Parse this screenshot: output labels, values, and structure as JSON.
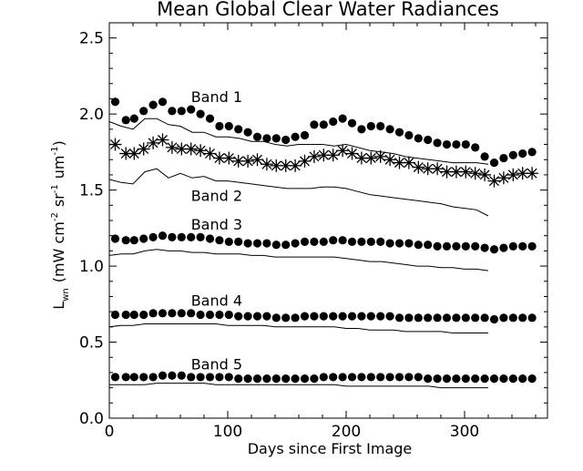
{
  "chart_data": {
    "type": "scatter",
    "title": "Mean Global Clear Water Radiances",
    "xlabel": "Days since First Image",
    "ylabel": {
      "base": "L",
      "base_sub": "wn",
      "open": "(mW cm",
      "exp1": "-2",
      "mid1": "sr",
      "exp2": "-1",
      "mid2": "um",
      "exp3": "-1",
      "close": ")"
    },
    "xlim": [
      0,
      370
    ],
    "ylim": [
      0,
      2.6
    ],
    "xticks": [
      0,
      100,
      200,
      300
    ],
    "xtick_labels": [
      "0",
      "100",
      "200",
      "300"
    ],
    "yticks": [
      0.0,
      0.5,
      1.0,
      1.5,
      2.0,
      2.5
    ],
    "ytick_labels": [
      "0.0",
      "0.5",
      "1.0",
      "1.5",
      "2.0",
      "2.5"
    ],
    "annotations": [
      {
        "text": "Band 1",
        "x": 69,
        "y": 2.08
      },
      {
        "text": "Band 2",
        "x": 69,
        "y": 1.43
      },
      {
        "text": "Band 3",
        "x": 69,
        "y": 1.24
      },
      {
        "text": "Band 4",
        "x": 69,
        "y": 0.74
      },
      {
        "text": "Band 5",
        "x": 69,
        "y": 0.32
      }
    ],
    "scatter_series": [
      {
        "name": "Band 1",
        "marker": "dot",
        "x": [
          5,
          14,
          21,
          29,
          37,
          45,
          53,
          61,
          69,
          77,
          85,
          93,
          101,
          109,
          117,
          125,
          133,
          141,
          149,
          157,
          165,
          173,
          181,
          189,
          197,
          205,
          213,
          221,
          229,
          237,
          245,
          253,
          261,
          269,
          277,
          285,
          293,
          301,
          309,
          317,
          325,
          333,
          341,
          349,
          357
        ],
        "y": [
          2.08,
          1.96,
          1.97,
          2.02,
          2.06,
          2.08,
          2.02,
          2.02,
          2.03,
          2.0,
          1.97,
          1.92,
          1.92,
          1.9,
          1.88,
          1.85,
          1.84,
          1.84,
          1.83,
          1.85,
          1.86,
          1.93,
          1.93,
          1.95,
          1.97,
          1.94,
          1.9,
          1.92,
          1.92,
          1.9,
          1.88,
          1.86,
          1.84,
          1.83,
          1.81,
          1.8,
          1.8,
          1.8,
          1.78,
          1.72,
          1.68,
          1.71,
          1.73,
          1.74,
          1.75
        ]
      },
      {
        "name": "Band 2",
        "marker": "star",
        "x": [
          5,
          14,
          21,
          29,
          37,
          45,
          53,
          61,
          69,
          77,
          85,
          93,
          101,
          109,
          117,
          125,
          133,
          141,
          149,
          157,
          165,
          173,
          181,
          189,
          197,
          205,
          213,
          221,
          229,
          237,
          245,
          253,
          261,
          269,
          277,
          285,
          293,
          301,
          309,
          317,
          325,
          333,
          341,
          349,
          357
        ],
        "y": [
          1.8,
          1.74,
          1.74,
          1.77,
          1.81,
          1.83,
          1.78,
          1.77,
          1.77,
          1.76,
          1.74,
          1.71,
          1.71,
          1.69,
          1.69,
          1.7,
          1.67,
          1.66,
          1.66,
          1.66,
          1.69,
          1.72,
          1.73,
          1.73,
          1.76,
          1.74,
          1.71,
          1.71,
          1.72,
          1.7,
          1.68,
          1.68,
          1.65,
          1.64,
          1.64,
          1.62,
          1.62,
          1.62,
          1.61,
          1.6,
          1.56,
          1.58,
          1.6,
          1.61,
          1.61
        ]
      },
      {
        "name": "Band 3",
        "marker": "dot",
        "x": [
          5,
          14,
          21,
          29,
          37,
          45,
          53,
          61,
          69,
          77,
          85,
          93,
          101,
          109,
          117,
          125,
          133,
          141,
          149,
          157,
          165,
          173,
          181,
          189,
          197,
          205,
          213,
          221,
          229,
          237,
          245,
          253,
          261,
          269,
          277,
          285,
          293,
          301,
          309,
          317,
          325,
          333,
          341,
          349,
          357
        ],
        "y": [
          1.18,
          1.17,
          1.17,
          1.18,
          1.19,
          1.2,
          1.19,
          1.19,
          1.19,
          1.19,
          1.18,
          1.17,
          1.16,
          1.16,
          1.15,
          1.15,
          1.15,
          1.14,
          1.14,
          1.15,
          1.16,
          1.16,
          1.16,
          1.17,
          1.17,
          1.16,
          1.16,
          1.16,
          1.16,
          1.15,
          1.15,
          1.15,
          1.14,
          1.14,
          1.13,
          1.13,
          1.13,
          1.13,
          1.13,
          1.12,
          1.11,
          1.12,
          1.13,
          1.13,
          1.13
        ]
      },
      {
        "name": "Band 4",
        "marker": "dot",
        "x": [
          5,
          14,
          21,
          29,
          37,
          45,
          53,
          61,
          69,
          77,
          85,
          93,
          101,
          109,
          117,
          125,
          133,
          141,
          149,
          157,
          165,
          173,
          181,
          189,
          197,
          205,
          213,
          221,
          229,
          237,
          245,
          253,
          261,
          269,
          277,
          285,
          293,
          301,
          309,
          317,
          325,
          333,
          341,
          349,
          357
        ],
        "y": [
          0.68,
          0.68,
          0.68,
          0.68,
          0.69,
          0.69,
          0.69,
          0.69,
          0.69,
          0.68,
          0.68,
          0.68,
          0.68,
          0.67,
          0.67,
          0.67,
          0.67,
          0.66,
          0.66,
          0.66,
          0.67,
          0.67,
          0.67,
          0.67,
          0.67,
          0.67,
          0.67,
          0.67,
          0.67,
          0.67,
          0.66,
          0.66,
          0.66,
          0.66,
          0.66,
          0.66,
          0.66,
          0.66,
          0.66,
          0.66,
          0.65,
          0.66,
          0.66,
          0.66,
          0.66
        ]
      },
      {
        "name": "Band 5",
        "marker": "dot",
        "x": [
          5,
          14,
          21,
          29,
          37,
          45,
          53,
          61,
          69,
          77,
          85,
          93,
          101,
          109,
          117,
          125,
          133,
          141,
          149,
          157,
          165,
          173,
          181,
          189,
          197,
          205,
          213,
          221,
          229,
          237,
          245,
          253,
          261,
          269,
          277,
          285,
          293,
          301,
          309,
          317,
          325,
          333,
          341,
          349,
          357
        ],
        "y": [
          0.27,
          0.27,
          0.27,
          0.27,
          0.27,
          0.28,
          0.28,
          0.28,
          0.27,
          0.27,
          0.27,
          0.27,
          0.27,
          0.26,
          0.26,
          0.26,
          0.26,
          0.26,
          0.26,
          0.26,
          0.26,
          0.26,
          0.27,
          0.27,
          0.27,
          0.27,
          0.27,
          0.27,
          0.27,
          0.27,
          0.27,
          0.27,
          0.27,
          0.26,
          0.26,
          0.26,
          0.26,
          0.26,
          0.26,
          0.26,
          0.26,
          0.26,
          0.26,
          0.26,
          0.26
        ]
      }
    ],
    "line_series": [
      {
        "name": "Band 1 line",
        "x": [
          0,
          10,
          20,
          30,
          40,
          50,
          60,
          70,
          80,
          90,
          100,
          110,
          120,
          130,
          140,
          150,
          160,
          170,
          180,
          190,
          200,
          210,
          220,
          230,
          240,
          250,
          260,
          270,
          280,
          290,
          300,
          310,
          320
        ],
        "y": [
          1.95,
          1.92,
          1.9,
          1.97,
          1.97,
          1.93,
          1.92,
          1.88,
          1.88,
          1.85,
          1.85,
          1.84,
          1.82,
          1.82,
          1.8,
          1.79,
          1.8,
          1.8,
          1.8,
          1.79,
          1.8,
          1.78,
          1.76,
          1.75,
          1.74,
          1.72,
          1.71,
          1.7,
          1.69,
          1.68,
          1.68,
          1.68,
          1.67
        ]
      },
      {
        "name": "Band 2 line",
        "x": [
          0,
          10,
          20,
          30,
          40,
          50,
          60,
          70,
          80,
          90,
          100,
          110,
          120,
          130,
          140,
          150,
          160,
          170,
          180,
          190,
          200,
          210,
          220,
          230,
          240,
          250,
          260,
          270,
          280,
          290,
          300,
          310,
          320
        ],
        "y": [
          1.57,
          1.55,
          1.54,
          1.62,
          1.64,
          1.58,
          1.61,
          1.58,
          1.59,
          1.56,
          1.56,
          1.55,
          1.54,
          1.53,
          1.52,
          1.51,
          1.51,
          1.51,
          1.52,
          1.52,
          1.51,
          1.49,
          1.47,
          1.46,
          1.45,
          1.44,
          1.43,
          1.42,
          1.41,
          1.39,
          1.38,
          1.37,
          1.33
        ]
      },
      {
        "name": "Band 3 line",
        "x": [
          0,
          10,
          20,
          30,
          40,
          50,
          60,
          70,
          80,
          90,
          100,
          110,
          120,
          130,
          140,
          150,
          160,
          170,
          180,
          190,
          200,
          210,
          220,
          230,
          240,
          250,
          260,
          270,
          280,
          290,
          300,
          310,
          320
        ],
        "y": [
          1.07,
          1.08,
          1.08,
          1.1,
          1.11,
          1.1,
          1.1,
          1.09,
          1.09,
          1.08,
          1.08,
          1.08,
          1.07,
          1.07,
          1.06,
          1.06,
          1.06,
          1.06,
          1.06,
          1.06,
          1.05,
          1.04,
          1.03,
          1.03,
          1.02,
          1.01,
          1.0,
          1.0,
          0.99,
          0.99,
          0.98,
          0.98,
          0.97
        ]
      },
      {
        "name": "Band 4 line",
        "x": [
          0,
          10,
          20,
          30,
          40,
          50,
          60,
          70,
          80,
          90,
          100,
          110,
          120,
          130,
          140,
          150,
          160,
          170,
          180,
          190,
          200,
          210,
          220,
          230,
          240,
          250,
          260,
          270,
          280,
          290,
          300,
          310,
          320
        ],
        "y": [
          0.6,
          0.61,
          0.61,
          0.62,
          0.62,
          0.62,
          0.62,
          0.62,
          0.62,
          0.62,
          0.61,
          0.61,
          0.61,
          0.61,
          0.6,
          0.6,
          0.6,
          0.6,
          0.6,
          0.6,
          0.59,
          0.59,
          0.58,
          0.58,
          0.58,
          0.57,
          0.57,
          0.57,
          0.57,
          0.56,
          0.56,
          0.56,
          0.56
        ]
      },
      {
        "name": "Band 5 line",
        "x": [
          0,
          10,
          20,
          30,
          40,
          50,
          60,
          70,
          80,
          90,
          100,
          110,
          120,
          130,
          140,
          150,
          160,
          170,
          180,
          190,
          200,
          210,
          220,
          230,
          240,
          250,
          260,
          270,
          280,
          290,
          300,
          310,
          320
        ],
        "y": [
          0.22,
          0.22,
          0.22,
          0.22,
          0.23,
          0.23,
          0.23,
          0.23,
          0.23,
          0.22,
          0.22,
          0.22,
          0.22,
          0.22,
          0.22,
          0.22,
          0.22,
          0.22,
          0.22,
          0.22,
          0.21,
          0.21,
          0.21,
          0.21,
          0.21,
          0.21,
          0.21,
          0.21,
          0.2,
          0.2,
          0.2,
          0.2,
          0.2
        ]
      }
    ]
  }
}
